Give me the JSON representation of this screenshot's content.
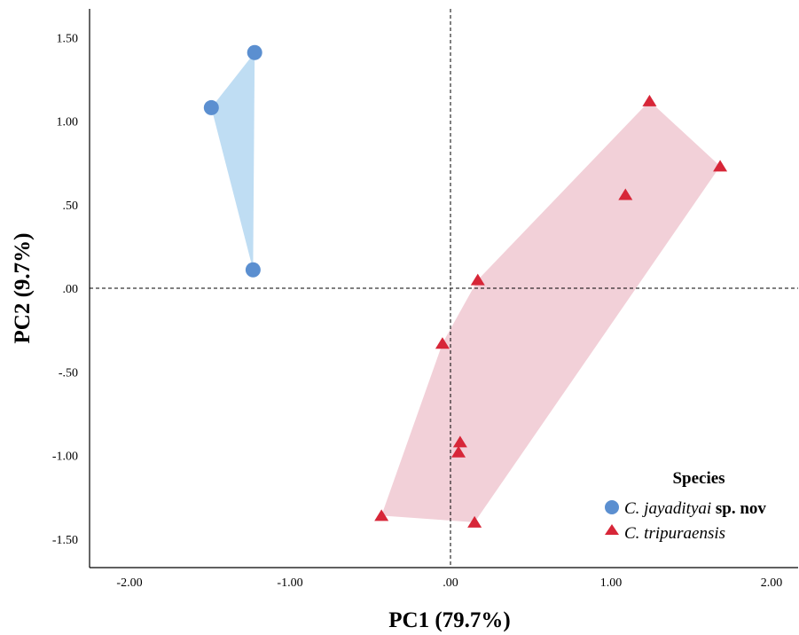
{
  "chart_data": {
    "type": "scatter",
    "xlabel": "PC1 (79.7%)",
    "ylabel": "PC2 (9.7%)",
    "xlim": [
      -2.2,
      2.15
    ],
    "ylim": [
      -1.68,
      1.67
    ],
    "x_ticks": [
      -2.0,
      -1.0,
      0.0,
      1.0,
      2.0
    ],
    "x_tick_labels": [
      "-2.00",
      "-1.00",
      ".00",
      "1.00",
      "2.00"
    ],
    "y_ticks": [
      1.5,
      1.0,
      0.5,
      0.0,
      -0.5,
      -1.0,
      -1.5
    ],
    "y_tick_labels": [
      "1.50",
      "1.00",
      ".50",
      ".00",
      "-.50",
      "-1.00",
      "-1.50"
    ],
    "reference_lines": {
      "x": 0,
      "y": 0
    },
    "legend": {
      "title": "Species",
      "placement": "bottom-right"
    },
    "series": [
      {
        "name_italic": "C. jayadityai",
        "name_bold": " sp. nov",
        "marker": "circle",
        "color": "#5B8FD0",
        "hull_color": "#BFDDF3",
        "points": [
          [
            -1.22,
            1.41
          ],
          [
            -1.49,
            1.08
          ],
          [
            -1.23,
            0.11
          ]
        ]
      },
      {
        "name_italic": "C. tripuraensis",
        "name_bold": "",
        "marker": "triangle",
        "color": "#D72638",
        "hull_color": "#F2D0D8",
        "points": [
          [
            1.24,
            1.12
          ],
          [
            1.68,
            0.73
          ],
          [
            1.09,
            0.56
          ],
          [
            0.17,
            0.05
          ],
          [
            -0.05,
            -0.33
          ],
          [
            0.06,
            -0.92
          ],
          [
            0.05,
            -0.98
          ],
          [
            -0.43,
            -1.36
          ],
          [
            0.15,
            -1.4
          ]
        ]
      }
    ]
  }
}
